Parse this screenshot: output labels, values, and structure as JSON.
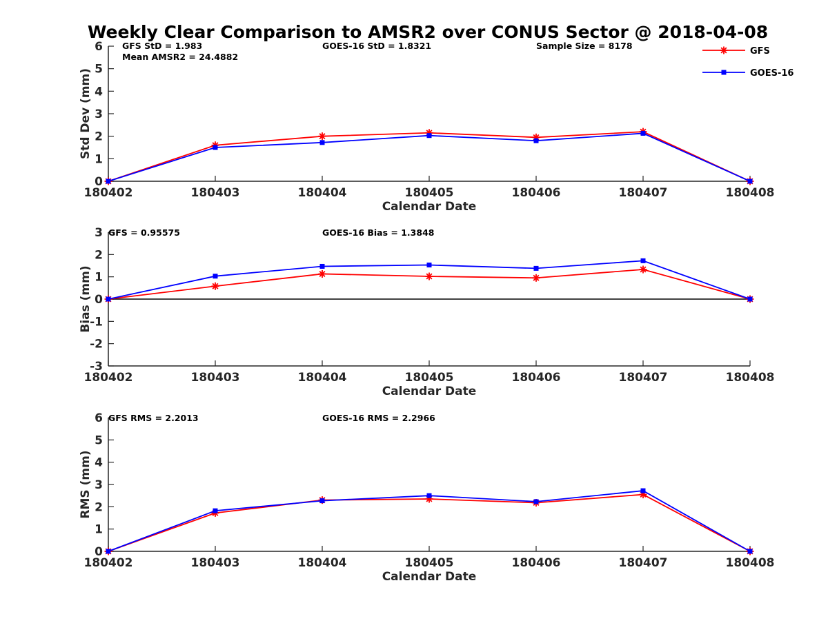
{
  "chart_data": {
    "title": "Weekly Clear Comparison to AMSR2 over CONUS Sector @ 2018-04-08",
    "categories": [
      "180402",
      "180403",
      "180404",
      "180405",
      "180406",
      "180407",
      "180408"
    ],
    "legend": {
      "placement": "top-right",
      "entries": [
        {
          "name": "GFS",
          "color": "#ff0000",
          "marker": "asterisk"
        },
        {
          "name": "GOES-16",
          "color": "#0000ff",
          "marker": "square"
        }
      ]
    },
    "panels": [
      {
        "type": "line",
        "xlabel": "Calendar Date",
        "ylabel": "Std Dev (mm)",
        "ylim": [
          0,
          6
        ],
        "yticks": [
          0,
          1,
          2,
          3,
          4,
          5,
          6
        ],
        "zero_line": false,
        "annotations": [
          {
            "id": "gfs_std",
            "text": "GFS StD = 1.983"
          },
          {
            "id": "mean_amsr2",
            "text": "Mean AMSR2 = 24.4882"
          },
          {
            "id": "goes_std",
            "text": "GOES-16 StD = 1.8321"
          },
          {
            "id": "sample_size",
            "text": "Sample Size = 8178"
          }
        ],
        "series": [
          {
            "name": "GFS",
            "color": "#ff0000",
            "marker": "asterisk",
            "values": [
              0,
              1.6,
              2.0,
              2.15,
              1.95,
              2.2,
              0
            ]
          },
          {
            "name": "GOES-16",
            "color": "#0000ff",
            "marker": "square",
            "values": [
              0,
              1.5,
              1.72,
              2.03,
              1.8,
              2.13,
              0
            ]
          }
        ]
      },
      {
        "type": "line",
        "xlabel": "Calendar Date",
        "ylabel": "Bias (mm)",
        "ylim": [
          -3,
          3
        ],
        "yticks": [
          -3,
          -2,
          -1,
          0,
          1,
          2,
          3
        ],
        "zero_line": true,
        "annotations": [
          {
            "id": "gfs_bias",
            "text": "GFS = 0.95575"
          },
          {
            "id": "goes_bias",
            "text": "GOES-16 Bias  = 1.3848"
          }
        ],
        "series": [
          {
            "name": "GFS",
            "color": "#ff0000",
            "marker": "asterisk",
            "values": [
              0,
              0.58,
              1.13,
              1.02,
              0.95,
              1.33,
              0
            ]
          },
          {
            "name": "GOES-16",
            "color": "#0000ff",
            "marker": "square",
            "values": [
              0,
              1.03,
              1.47,
              1.53,
              1.38,
              1.72,
              0
            ]
          }
        ]
      },
      {
        "type": "line",
        "xlabel": "Calendar Date",
        "ylabel": "RMS (mm)",
        "ylim": [
          0,
          6
        ],
        "yticks": [
          0,
          1,
          2,
          3,
          4,
          5,
          6
        ],
        "zero_line": false,
        "annotations": [
          {
            "id": "gfs_rms",
            "text": "GFS RMS = 2.2013"
          },
          {
            "id": "goes_rms",
            "text": "GOES-16 RMS = 2.2966"
          }
        ],
        "series": [
          {
            "name": "GFS",
            "color": "#ff0000",
            "marker": "asterisk",
            "values": [
              0,
              1.72,
              2.3,
              2.35,
              2.18,
              2.55,
              0
            ]
          },
          {
            "name": "GOES-16",
            "color": "#0000ff",
            "marker": "square",
            "values": [
              0,
              1.82,
              2.27,
              2.5,
              2.23,
              2.72,
              0
            ]
          }
        ]
      }
    ]
  }
}
